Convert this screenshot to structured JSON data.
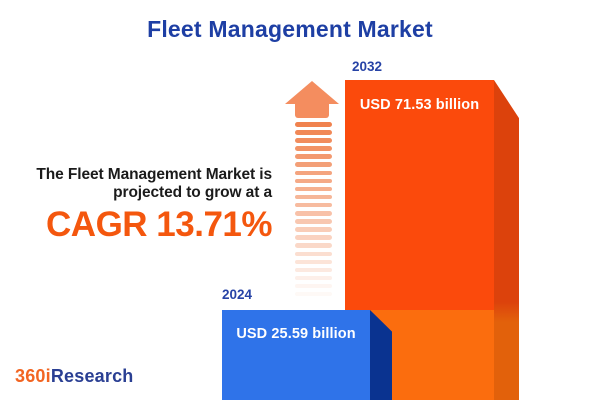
{
  "title": "Fleet Management Market",
  "annotation": {
    "line1": "The Fleet Management Market is",
    "line2": "projected to grow at a",
    "cagr_label": "CAGR 13.71%"
  },
  "bars": [
    {
      "year": "2024",
      "value_label": "USD 25.59 billion"
    },
    {
      "year": "2032",
      "value_label": "USD 71.53 billion"
    }
  ],
  "logo": {
    "part1": "360i",
    "part2": "Research"
  },
  "icons": {
    "growth_arrow": "up-arrow-striped"
  },
  "colors": {
    "title_blue": "#1E3FA4",
    "cagr_orange": "#F4570E",
    "bar_2032_front_top": "#FB4A0C",
    "bar_2032_front_bottom": "#FB6D0E",
    "bar_2032_side_top": "#DC420C",
    "bar_2032_side_bottom": "#E2610B",
    "bar_2024_front": "#2F73E9",
    "bar_2024_side": "#0A3390",
    "arrow_head": "#F48D5F",
    "arrow_stripe": "#F0824E",
    "logo_orange": "#F26522",
    "logo_blue": "#2A3F93",
    "value_text": "#FFFFFF"
  },
  "chart_data": {
    "type": "bar",
    "title": "Fleet Management Market",
    "categories": [
      "2024",
      "2032"
    ],
    "values": [
      25.59,
      71.53
    ],
    "unit": "USD billion",
    "value_labels": [
      "USD 25.59 billion",
      "USD 71.53 billion"
    ],
    "annotation": "The Fleet Management Market is projected to grow at a CAGR 13.71%",
    "cagr_percent": 13.71,
    "legend": "none",
    "grid": false,
    "axes": "none"
  }
}
